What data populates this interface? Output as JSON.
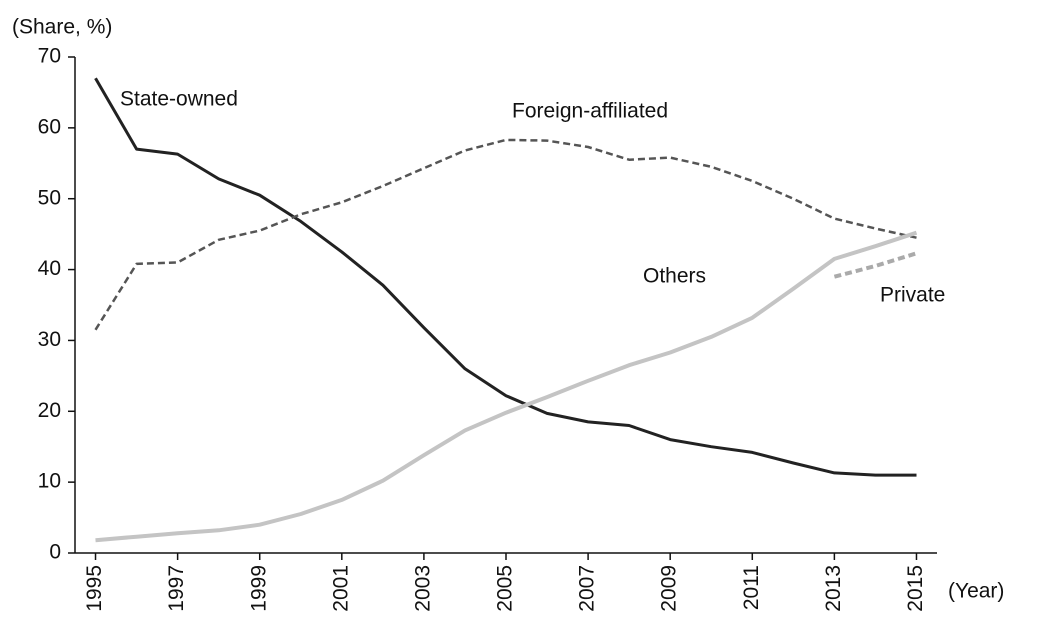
{
  "chart_data": {
    "type": "line",
    "y_label": "(Share, %)",
    "x_label": "(Year)",
    "x": [
      1995,
      1996,
      1997,
      1998,
      1999,
      2000,
      2001,
      2002,
      2003,
      2004,
      2005,
      2006,
      2007,
      2008,
      2009,
      2010,
      2011,
      2012,
      2013,
      2014,
      2015
    ],
    "xlim": [
      1994.5,
      2015.5
    ],
    "xticks": [
      1995,
      1997,
      1999,
      2001,
      2003,
      2005,
      2007,
      2009,
      2011,
      2013,
      2015
    ],
    "ylim": [
      0,
      70
    ],
    "yticks": [
      0,
      10,
      20,
      30,
      40,
      50,
      60,
      70
    ],
    "grid": false,
    "series": [
      {
        "name": "State-owned",
        "color": "#222222",
        "dashed": false,
        "values": [
          67,
          57,
          56.3,
          52.8,
          50.5,
          46.8,
          42.5,
          37.8,
          31.8,
          26,
          22.2,
          19.7,
          18.5,
          18,
          16,
          15,
          14.2,
          12.7,
          11.3,
          11,
          11
        ]
      },
      {
        "name": "Foreign-affiliated",
        "color": "#555555",
        "dashed": true,
        "values": [
          31.5,
          40.8,
          41,
          44.2,
          45.5,
          47.8,
          49.5,
          51.8,
          54.3,
          56.8,
          58.3,
          58.2,
          57.3,
          55.5,
          55.8,
          54.5,
          52.5,
          50,
          47.2,
          45.8,
          44.5
        ]
      },
      {
        "name": "Others",
        "color": "#c4c4c4",
        "dashed": false,
        "values": [
          1.8,
          2.3,
          2.8,
          3.2,
          4,
          5.5,
          7.5,
          10.2,
          13.8,
          17.3,
          19.8,
          22,
          24.3,
          26.5,
          28.3,
          30.5,
          33.2,
          37.3,
          41.5,
          43.3,
          45.2
        ]
      },
      {
        "name": "Private",
        "color": "#aaaaaa",
        "dashed": true,
        "values": [
          null,
          null,
          null,
          null,
          null,
          null,
          null,
          null,
          null,
          null,
          null,
          null,
          null,
          null,
          null,
          null,
          null,
          null,
          39,
          40.5,
          42.3
        ]
      }
    ]
  }
}
